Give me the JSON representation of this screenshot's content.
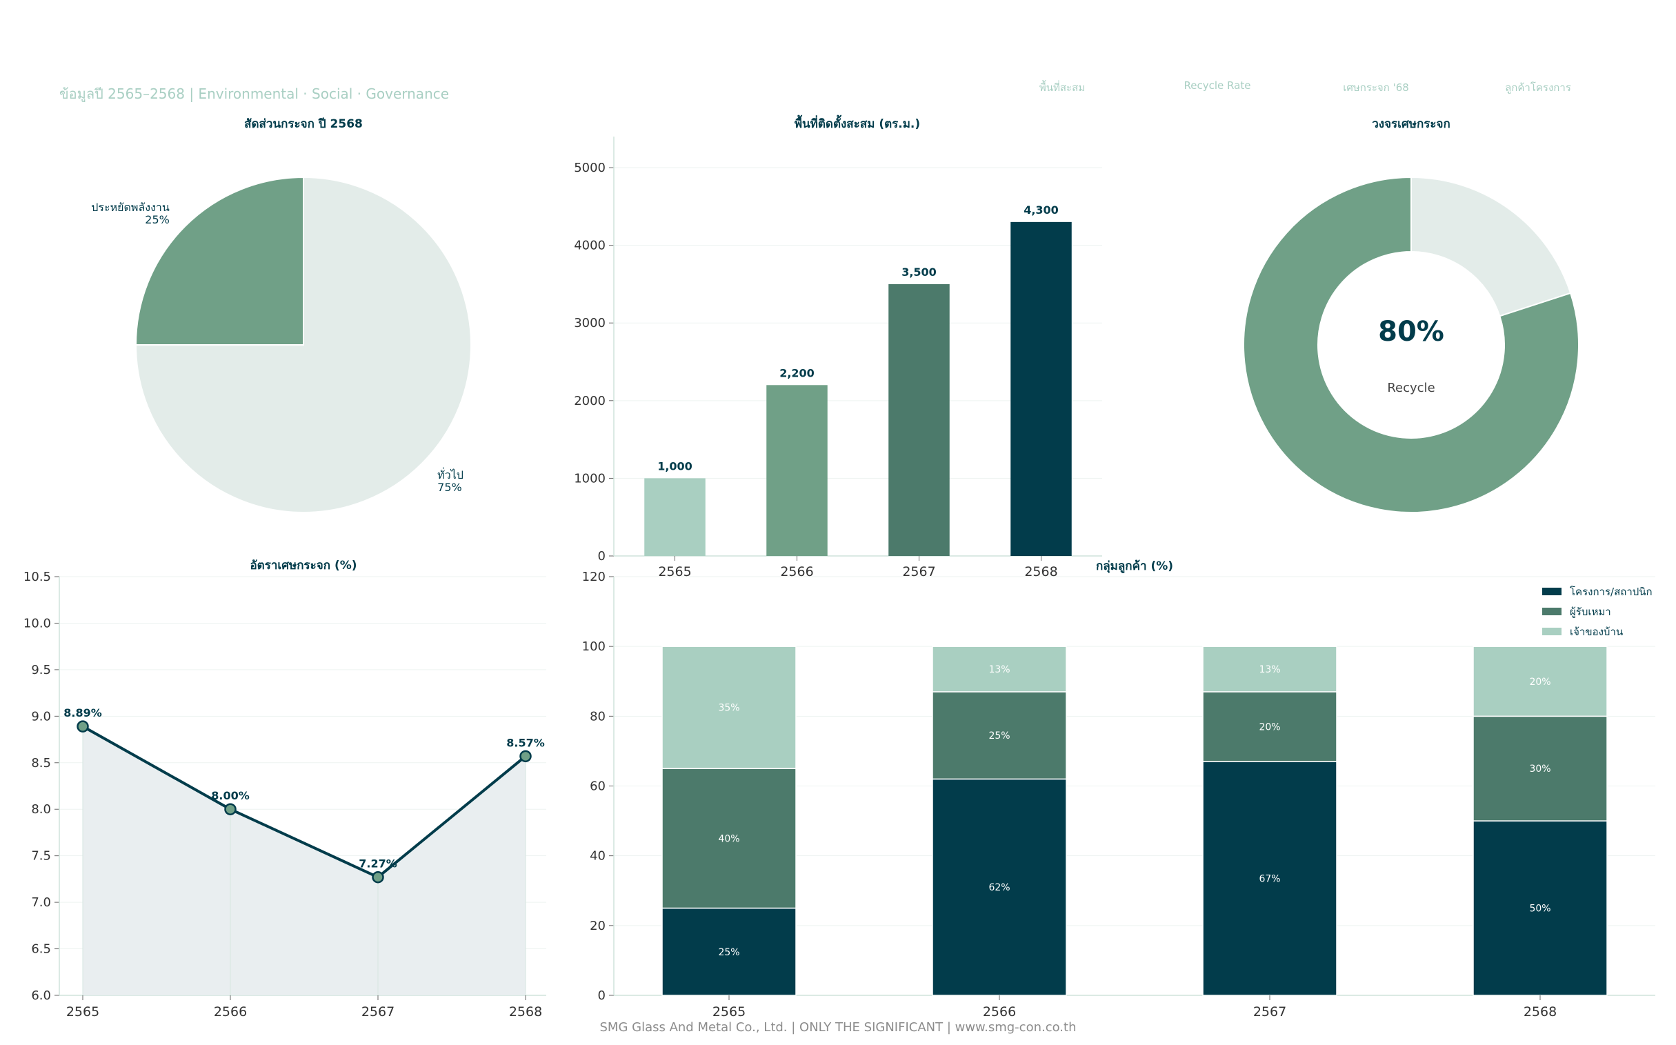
{
  "header": {
    "subtitle": "ข้อมูลปี 2565–2568  |  Environmental · Social · Governance",
    "kpis": [
      "พื้นที่สะสม",
      "Recycle Rate",
      "เศษกระจก '68",
      "ลูกค้าโครงการ"
    ]
  },
  "footer": "SMG Glass And Metal Co., Ltd.  |  ONLY THE SIGNIFICANT  |  www.smg-con.co.th",
  "colors": {
    "dark": "#023c4b",
    "mid": "#4c7a6b",
    "green": "#70a087",
    "light": "#a9cfc1",
    "pale": "#e3ece9",
    "area": "#e9eef0"
  },
  "chart_data": [
    {
      "id": "glass-share",
      "type": "pie",
      "title": "สัดส่วนกระจก ปี 2568",
      "slices": [
        {
          "label": "ประหยัดพลังงาน",
          "value": 25,
          "pct_label": "25%",
          "color": "#70a087"
        },
        {
          "label": "ทั่วไป",
          "value": 75,
          "pct_label": "75%",
          "color": "#e3ece9"
        }
      ]
    },
    {
      "id": "installed-area",
      "type": "bar",
      "title": "พื้นที่ติดตั้งสะสม (ตร.ม.)",
      "categories": [
        "2565",
        "2566",
        "2567",
        "2568"
      ],
      "values": [
        1000,
        2200,
        3500,
        4300
      ],
      "value_labels": [
        "1,000",
        "2,200",
        "3,500",
        "4,300"
      ],
      "colors": [
        "#a9cfc1",
        "#70a087",
        "#4c7a6b",
        "#023c4b"
      ],
      "ylim": [
        0,
        5400
      ],
      "yticks": [
        0,
        1000,
        2000,
        3000,
        4000,
        5000
      ],
      "grid": true
    },
    {
      "id": "glass-cycle",
      "type": "pie",
      "title": "วงจรเศษกระจก",
      "center_value": "80%",
      "center_label": "Recycle",
      "slices": [
        {
          "value": 80,
          "color": "#70a087"
        },
        {
          "value": 20,
          "color": "#e3ece9"
        }
      ]
    },
    {
      "id": "scrap-rate",
      "type": "line",
      "title": "อัตราเศษกระจก (%)",
      "x": [
        "2565",
        "2566",
        "2567",
        "2568"
      ],
      "y": [
        8.89,
        8.0,
        7.27,
        8.57
      ],
      "point_labels": [
        "8.89%",
        "8.00%",
        "7.27%",
        "8.57%"
      ],
      "ylim": [
        6.0,
        10.5
      ],
      "yticks": [
        "6.0",
        "6.5",
        "7.0",
        "7.5",
        "8.0",
        "8.5",
        "9.0",
        "9.5",
        "10.0",
        "10.5"
      ],
      "grid": true,
      "filled": true
    },
    {
      "id": "customer-groups",
      "type": "bar",
      "stacked": true,
      "title": "กลุ่มลูกค้า (%)",
      "categories": [
        "2565",
        "2566",
        "2567",
        "2568"
      ],
      "series": [
        {
          "name": "โครงการ/สถาปนิก",
          "values": [
            25,
            62,
            67,
            50
          ],
          "labels": [
            "25%",
            "62%",
            "67%",
            "50%"
          ],
          "color": "#023c4b"
        },
        {
          "name": "ผู้รับเหมา",
          "values": [
            40,
            25,
            20,
            30
          ],
          "labels": [
            "40%",
            "25%",
            "20%",
            "30%"
          ],
          "color": "#4c7a6b"
        },
        {
          "name": "เจ้าของบ้าน",
          "values": [
            35,
            13,
            13,
            20
          ],
          "labels": [
            "35%",
            "13%",
            "13%",
            "20%"
          ],
          "color": "#a9cfc1"
        }
      ],
      "ylim": [
        0,
        120
      ],
      "yticks": [
        0,
        20,
        40,
        60,
        80,
        100,
        120
      ],
      "legend": "top-right",
      "grid": true
    }
  ]
}
